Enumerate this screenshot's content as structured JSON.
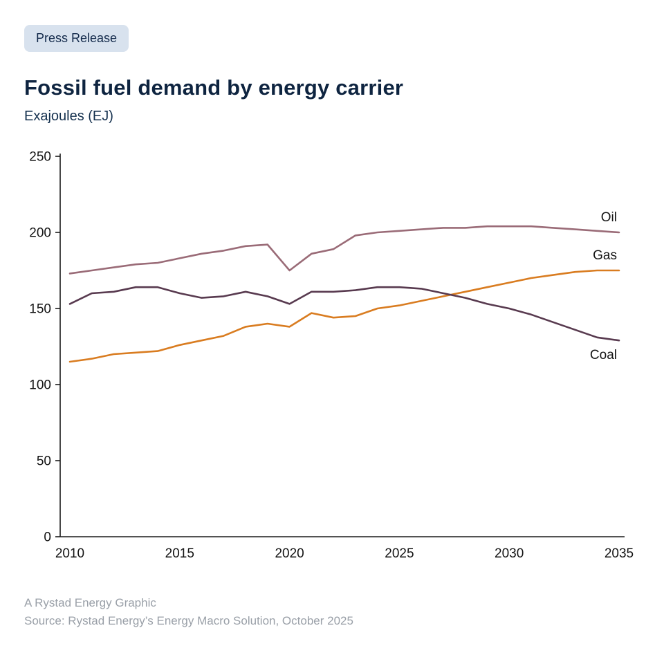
{
  "badge": {
    "label": "Press Release"
  },
  "header": {
    "title": "Fossil fuel demand by energy carrier",
    "subtitle": "Exajoules (EJ)"
  },
  "footer": {
    "line1": "A Rystad Energy Graphic",
    "line2": "Source: Rystad Energy’s Energy Macro Solution, October 2025"
  },
  "colors": {
    "brand_navy": "#0e2440",
    "badge_bg": "#d8e2ee",
    "oil": "#9a6b77",
    "gas": "#d97c20",
    "coal": "#583a4f",
    "axis": "#1a1a1a",
    "footer_gray": "#9aa0a8"
  },
  "chart_data": {
    "type": "line",
    "title": "Fossil fuel demand by energy carrier",
    "ylabel": "Exajoules (EJ)",
    "xlabel": "",
    "grid": false,
    "legend_position": "end-of-line labels",
    "ylim": [
      0,
      250
    ],
    "yticks": [
      0,
      50,
      100,
      150,
      200,
      250
    ],
    "xticks": [
      2010,
      2015,
      2020,
      2025,
      2030,
      2035
    ],
    "x": [
      2010,
      2011,
      2012,
      2013,
      2014,
      2015,
      2016,
      2017,
      2018,
      2019,
      2020,
      2021,
      2022,
      2023,
      2024,
      2025,
      2026,
      2027,
      2028,
      2029,
      2030,
      2031,
      2032,
      2033,
      2034,
      2035
    ],
    "series": [
      {
        "name": "Oil",
        "color": "#9a6b77",
        "values": [
          173,
          175,
          177,
          179,
          180,
          183,
          186,
          188,
          191,
          192,
          175,
          186,
          189,
          198,
          200,
          201,
          202,
          203,
          203,
          204,
          204,
          204,
          203,
          202,
          201,
          200
        ]
      },
      {
        "name": "Gas",
        "color": "#d97c20",
        "values": [
          115,
          117,
          120,
          121,
          122,
          126,
          129,
          132,
          138,
          140,
          138,
          147,
          144,
          145,
          150,
          152,
          155,
          158,
          161,
          164,
          167,
          170,
          172,
          174,
          175,
          175
        ]
      },
      {
        "name": "Coal",
        "color": "#583a4f",
        "values": [
          153,
          160,
          161,
          164,
          164,
          160,
          157,
          158,
          161,
          158,
          153,
          161,
          161,
          162,
          164,
          164,
          163,
          160,
          157,
          153,
          150,
          146,
          141,
          136,
          131,
          129
        ]
      }
    ]
  }
}
